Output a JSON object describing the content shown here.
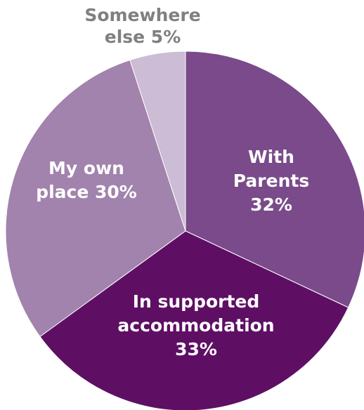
{
  "chart_data": {
    "type": "pie",
    "title": "",
    "slices": [
      {
        "label": "With Parents",
        "value": 32,
        "label_text": "32%",
        "label_lines": [
          "With",
          "Parents",
          "32%"
        ],
        "color": "#7a4a8a",
        "label_color": "#ffffff"
      },
      {
        "label": "In supported accommodation",
        "value": 33,
        "label_text": "33%",
        "label_lines": [
          "In supported",
          "accommodation",
          "33%"
        ],
        "color": "#5e0f64",
        "label_color": "#ffffff"
      },
      {
        "label": "My own place",
        "value": 30,
        "label_text": "30%",
        "label_lines": [
          "My own",
          "place 30%"
        ],
        "color": "#a283ad",
        "label_color": "#ffffff"
      },
      {
        "label": "Somewhere else",
        "value": 5,
        "label_text": "5%",
        "label_lines": [
          "Somewhere",
          "else 5%"
        ],
        "color": "#ccbcd6",
        "label_color": "#808080"
      }
    ],
    "start_angle_deg": 0,
    "direction": "clockwise",
    "legend": "none"
  }
}
